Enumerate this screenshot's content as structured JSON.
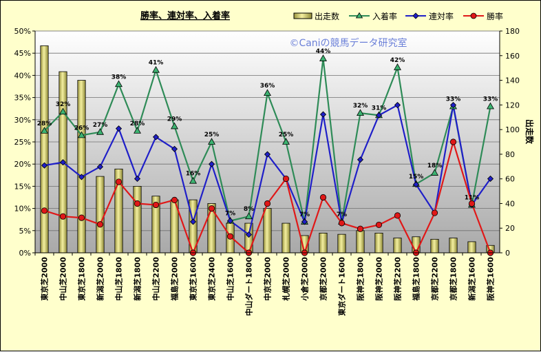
{
  "chart_data": {
    "type": "bar",
    "title": "勝率、連対率、入着率",
    "watermark": "©Caniの競馬データ研究室",
    "y2label": "出走数",
    "ylim": [
      0,
      50
    ],
    "y2lim": [
      0,
      180
    ],
    "yticks": [
      "0%",
      "5%",
      "10%",
      "15%",
      "20%",
      "25%",
      "30%",
      "35%",
      "40%",
      "45%",
      "50%"
    ],
    "y2ticks": [
      "0",
      "20",
      "40",
      "60",
      "80",
      "100",
      "120",
      "140",
      "160",
      "180"
    ],
    "categories": [
      "東京芝2000",
      "中山芝2000",
      "東京芝1800",
      "新潟芝2000",
      "中山芝1800",
      "新潟芝1800",
      "中山芝2200",
      "福島芝2000",
      "東京芝1600",
      "東京芝2400",
      "中山芝1600",
      "中山ダート1800",
      "中京芝2000",
      "札幌芝2000",
      "小倉芝2000",
      "京都芝2000",
      "東京ダート1600",
      "阪神芝1800",
      "阪神芝2000",
      "阪神芝2200",
      "福島芝1800",
      "京都芝2200",
      "京都芝1800",
      "新潟芝1600",
      "阪神芝1600"
    ],
    "legend": [
      "出走数",
      "入着率",
      "連対率",
      "勝率"
    ],
    "colors": {
      "bar": "#e8e38a",
      "nyuchaku": "#2e8b57",
      "rentai": "#1f1fc8",
      "shoritsu": "#e01818"
    },
    "series": [
      {
        "name": "出走数",
        "axis": "right",
        "values": [
          168,
          147,
          140,
          62,
          68,
          54,
          46,
          43,
          43,
          40,
          24,
          24,
          36,
          24,
          14,
          16,
          15,
          18,
          16,
          12,
          13,
          11,
          12,
          9,
          6
        ]
      },
      {
        "name": "入着率",
        "values": [
          27.5,
          31.8,
          26.5,
          27.2,
          38.0,
          27.5,
          41.2,
          28.5,
          16.2,
          25.0,
          7.2,
          8.2,
          36.0,
          25.0,
          7.0,
          43.8,
          7.0,
          31.5,
          31.0,
          41.8,
          15.5,
          18.0,
          33.0,
          10.8,
          33.0
        ]
      },
      {
        "name": "連対率",
        "values": [
          19.7,
          20.4,
          17.1,
          19.4,
          28.0,
          16.7,
          26.1,
          23.4,
          7.0,
          20.0,
          7.2,
          4.1,
          22.2,
          16.7,
          7.0,
          31.2,
          6.8,
          21.0,
          31.0,
          33.3,
          15.4,
          9.0,
          33.3,
          10.8,
          16.7
        ]
      },
      {
        "name": "勝率",
        "values": [
          9.5,
          8.2,
          7.9,
          6.4,
          16.0,
          11.1,
          10.8,
          11.9,
          0.0,
          10.0,
          3.7,
          0.0,
          11.1,
          16.7,
          0.0,
          12.5,
          6.7,
          5.4,
          6.3,
          8.4,
          0.0,
          9.0,
          25.0,
          11.1,
          0.0
        ]
      }
    ],
    "value_labels": [
      "28%",
      "32%",
      "26%",
      "27%",
      "38%",
      "28%",
      "41%",
      "29%",
      "16%",
      "25%",
      "7%",
      "8%",
      "36%",
      "25%",
      "7%",
      "44%",
      "7%",
      "32%",
      "31%",
      "42%",
      "15%",
      "18%",
      "33%",
      "11%",
      "33%"
    ]
  }
}
